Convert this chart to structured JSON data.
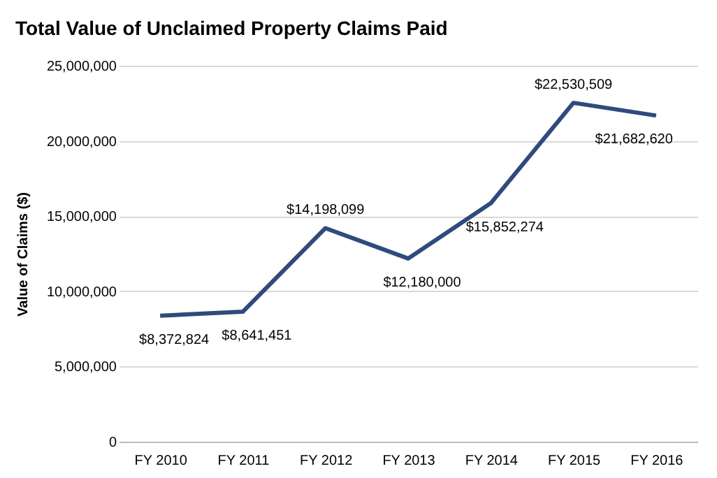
{
  "chart_data": {
    "type": "line",
    "title": "Total Value of Unclaimed Property Claims Paid",
    "ylabel": "Value of Claims ($)",
    "categories": [
      "FY 2010",
      "FY 2011",
      "FY 2012",
      "FY 2013",
      "FY 2014",
      "FY 2015",
      "FY 2016"
    ],
    "series": [
      {
        "color": "#2f4b7c",
        "values": [
          8372824,
          8641451,
          14198099,
          12180000,
          15852274,
          22530509,
          21682620
        ],
        "value_labels": [
          "$8,372,824",
          "$8,641,451",
          "$14,198,099",
          "$12,180,000",
          "$15,852,274",
          "$22,530,509",
          "$21,682,620"
        ]
      }
    ],
    "ylim": [
      0,
      25000000
    ],
    "yticks": [
      {
        "value": 0,
        "label": "0"
      },
      {
        "value": 5000000,
        "label": "5,000,000"
      },
      {
        "value": 10000000,
        "label": "10,000,000"
      },
      {
        "value": 15000000,
        "label": "15,000,000"
      },
      {
        "value": 20000000,
        "label": "20,000,000"
      },
      {
        "value": 25000000,
        "label": "25,000,000"
      }
    ],
    "grid": "y",
    "marker": "none",
    "line_style": "solid"
  }
}
